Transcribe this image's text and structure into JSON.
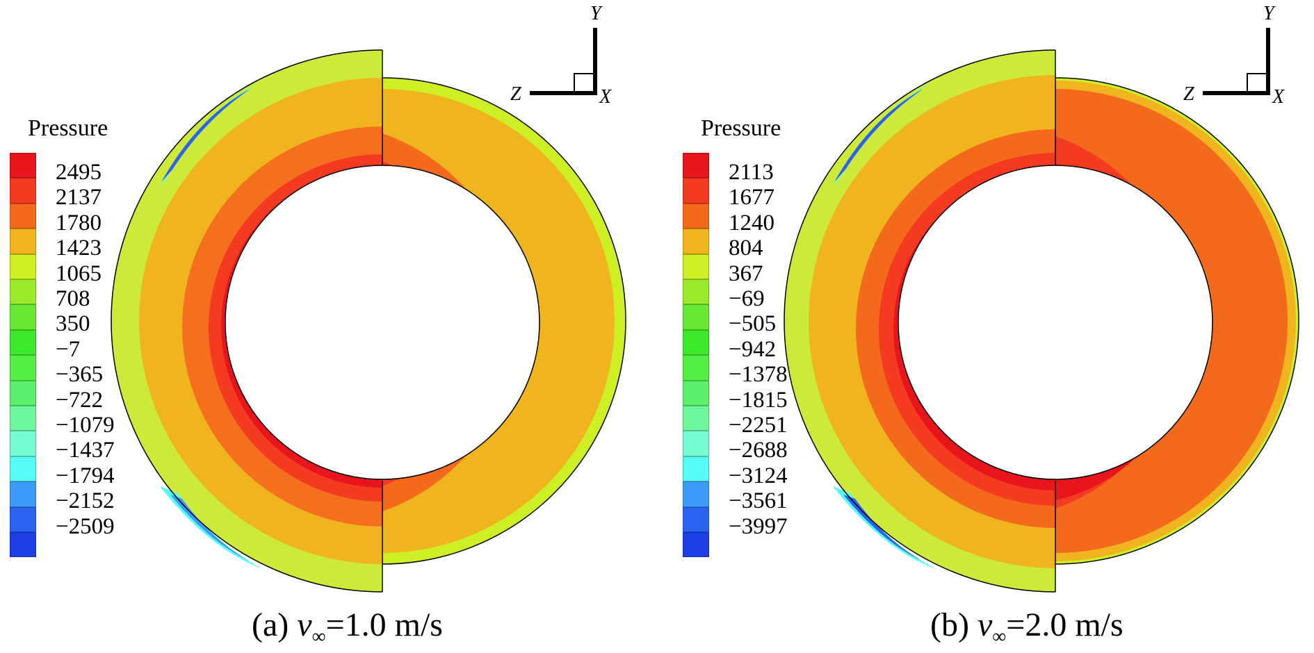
{
  "panels": [
    {
      "id": "a",
      "legend_title": "Pressure",
      "legend_levels": [
        "2495",
        "2137",
        "1780",
        "1423",
        "1065",
        "708",
        "350",
        "−7",
        "−365",
        "−722",
        "−1079",
        "−1437",
        "−1794",
        "−2152",
        "−2509"
      ],
      "caption": {
        "prefix": "(a) ",
        "var": "v",
        "sub": "∞",
        "suffix": "=1.0 m/s"
      },
      "axes": {
        "y": "Y",
        "z": "Z",
        "x": "X"
      }
    },
    {
      "id": "b",
      "legend_title": "Pressure",
      "legend_levels": [
        "2113",
        "1677",
        "1240",
        "804",
        "367",
        "−69",
        "−505",
        "−942",
        "−1378",
        "−1815",
        "−2251",
        "−2688",
        "−3124",
        "−3561",
        "−3997"
      ],
      "caption": {
        "prefix": "(b) ",
        "var": "v",
        "sub": "∞",
        "suffix": "=2.0 m/s"
      },
      "axes": {
        "y": "Y",
        "z": "Z",
        "x": "X"
      }
    }
  ],
  "colormap": [
    "#e8151c",
    "#f53a22",
    "#f46a1c",
    "#f0b41e",
    "#ccf024",
    "#9bea2c",
    "#66e833",
    "#3be82a",
    "#52ef44",
    "#5bef6c",
    "#6ef79d",
    "#77fbd4",
    "#56fbf5",
    "#3c9bf8",
    "#2a63f0",
    "#1e3fe8"
  ]
}
